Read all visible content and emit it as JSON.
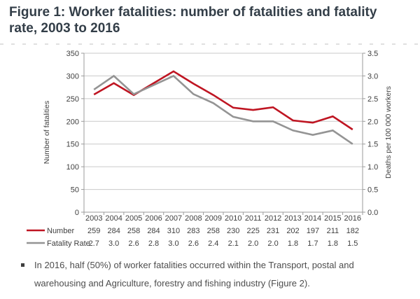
{
  "page": {
    "title": "Figure 1: Worker fatalities: number of fatalities and fatality rate, 2003 to 2016",
    "bullet_text": "In 2016, half (50%) of worker fatalities occurred within the Transport, postal and warehousing and Agriculture, forestry and fishing industry (Figure 2)."
  },
  "chart_data": {
    "type": "line",
    "title": "",
    "categories": [
      "2003",
      "2004",
      "2005",
      "2006",
      "2007",
      "2008",
      "2009",
      "2010",
      "2011",
      "2012",
      "2013",
      "2014",
      "2015",
      "2016"
    ],
    "series": [
      {
        "name": "Number",
        "axis": "left",
        "color": "#bf1522",
        "values": [
          259,
          284,
          258,
          284,
          310,
          283,
          258,
          230,
          225,
          231,
          202,
          197,
          211,
          182
        ],
        "display": [
          "259",
          "284",
          "258",
          "284",
          "310",
          "283",
          "258",
          "230",
          "225",
          "231",
          "202",
          "197",
          "211",
          "182"
        ]
      },
      {
        "name": "Fatality Rate",
        "axis": "right",
        "color": "#949494",
        "values": [
          2.7,
          3.0,
          2.6,
          2.8,
          3.0,
          2.6,
          2.4,
          2.1,
          2.0,
          2.0,
          1.8,
          1.7,
          1.8,
          1.5
        ],
        "display": [
          "2.7",
          "3.0",
          "2.6",
          "2.8",
          "3.0",
          "2.6",
          "2.4",
          "2.1",
          "2.0",
          "2.0",
          "1.8",
          "1.7",
          "1.8",
          "1.5"
        ]
      }
    ],
    "left_axis": {
      "label": "Number of fatalities",
      "min": 0,
      "max": 350,
      "step": 50,
      "ticks": [
        "0",
        "50",
        "100",
        "150",
        "200",
        "250",
        "300",
        "350"
      ]
    },
    "right_axis": {
      "label": "Deaths per 100 000 workers",
      "min": 0,
      "max": 3.5,
      "step": 0.5,
      "ticks": [
        "0.0",
        "0.5",
        "1.0",
        "1.5",
        "2.0",
        "2.5",
        "3.0",
        "3.5"
      ]
    },
    "grid": true,
    "legend_position": "left-of-data-table",
    "colors": {
      "grid": "#c9c9c9",
      "axis": "#9b9b9b",
      "text": "#3f3f3f"
    }
  }
}
